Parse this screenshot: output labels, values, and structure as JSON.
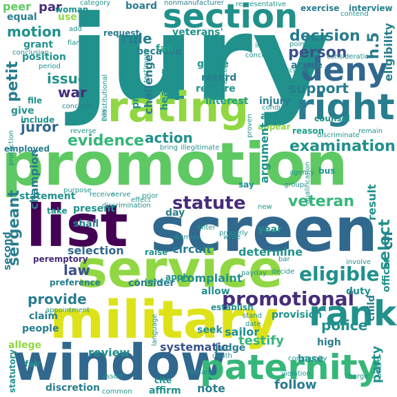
{
  "words": {
    "jury": "jury",
    "promotion": "promotion",
    "screen": "screen",
    "service": "service",
    "military": "military",
    "list": "list",
    "window": "window",
    "section": "section",
    "rating": "rating",
    "right": "right",
    "deny": "deny",
    "paternity": "paternity",
    "rank": "rank",
    "promotional": "promotional",
    "eligible": "eligible",
    "statute": "statute",
    "veteran": "veteran",
    "evidence": "evidence",
    "examination": "examination",
    "decision": "decision",
    "person": "person",
    "support": "support",
    "issue": "issue",
    "rule": "rule",
    "motion": "motion",
    "war": "war",
    "juror": "juror",
    "action": "action",
    "law": "law",
    "provide": "provide",
    "police": "police",
    "sergeant": "sergeant",
    "petit": "petit",
    "select": "select",
    "circuit": "circuit",
    "determine": "determine",
    "selection": "selection",
    "complaint": "complaint",
    "systematic": "systematic",
    "follow": "follow",
    "discretion": "discretion",
    "note": "note",
    "testify": "testify",
    "review": "review",
    "party": "party",
    "sailor": "sailor",
    "judge": "judge",
    "high": "high",
    "base": "base",
    "peer": "peer",
    "board": "board",
    "grade": "grade",
    "record": "record",
    "require": "require",
    "interest": "interest",
    "counsel": "counsel",
    "process": "process",
    "challenge": "challenge",
    "hearing": "hearing",
    "argue": "argue",
    "eligibility": "eligibility",
    "because": "because",
    "veterans": "veterans'",
    "fail": "fail",
    "position": "position",
    "grant": "grant",
    "par": "par",
    "nonmanufacturer": "nonmanufacturer",
    "woman": "woman",
    "use": "use",
    "equal": "equal",
    "h5": "h.5",
    "injury": "injury",
    "act": "act",
    "argument": "argument",
    "present": "present",
    "day": "day",
    "statement": "statement",
    "result": "result",
    "officer": "officer",
    "ch": "ch",
    "duty": "duty",
    "child": "child",
    "provision": "provision",
    "allow": "allow",
    "consider": "consider",
    "apply": "apply",
    "language": "language",
    "seek": "seek",
    "establish": "establish",
    "people": "people",
    "claim": "claim",
    "allege": "allege",
    "preference": "preference",
    "peremptory": "peremptory",
    "second": "second",
    "shall": "shall",
    "take": "take",
    "give": "give",
    "file": "file",
    "include": "include",
    "employed": "employed",
    "champion": "champion",
    "affirm": "affirm",
    "cite": "cite",
    "fair": "fair",
    "statutory": "statutory",
    "raise": "raise",
    "year": "year",
    "payday": "payday",
    "exercise": "exercise",
    "interview": "interview",
    "representative": "representative",
    "category": "category",
    "request": "request",
    "fiance": "fiance",
    "add": "add",
    "conclusion": "conclusion",
    "period": "period",
    "conclude": "conclude",
    "reverse": "reverse",
    "pay": "pay",
    "bring": "bring",
    "illegitimate": "illegitimate",
    "purpose": "purpose",
    "receive": "receive",
    "serve": "serve",
    "prior": "prior",
    "effect": "effect",
    "discrimination": "discrimination",
    "conduct": "conduct",
    "appear": "appear",
    "reason": "reason",
    "remain": "remain",
    "discriminate": "discriminate",
    "agency": "agency",
    "bus": "bus",
    "say": "say",
    "enter": "enter",
    "properly": "properly",
    "dismiss": "dismiss",
    "decide": "decide",
    "involve": "involve",
    "bar": "bar",
    "violation": "violation",
    "community": "community",
    "charge": "charge",
    "award": "award",
    "date": "date",
    "death": "death",
    "common": "common",
    "remand": "remand",
    "however": "however",
    "appointment": "appointment",
    "stand": "stand",
    "contend": "contend",
    "consideration": "consideration",
    "show": "show",
    "exclude": "exclude",
    "point": "point",
    "instant": "instant",
    "concern": "concern",
    "testimony": "testimony",
    "constitutional": "constitutional",
    "protection": "protection",
    "accordingly": "accordingly",
    "proven": "proven",
    "new": "new",
    "group": "group",
    "qualification": "qualification",
    "write": "write",
    "assert": "assert"
  },
  "colors": {
    "dark_purple": "#440154",
    "indigo": "#472c7a",
    "blue": "#3b528b",
    "slate_blue": "#31688e",
    "teal_blue": "#287d8e",
    "teal": "#21918c",
    "green_teal": "#1fa088",
    "sea_green": "#35b779",
    "green": "#5ec962",
    "lime": "#90d743",
    "yellow_green": "#c2df23",
    "yellow": "#dde318",
    "bright_yellow": "#fde725"
  }
}
